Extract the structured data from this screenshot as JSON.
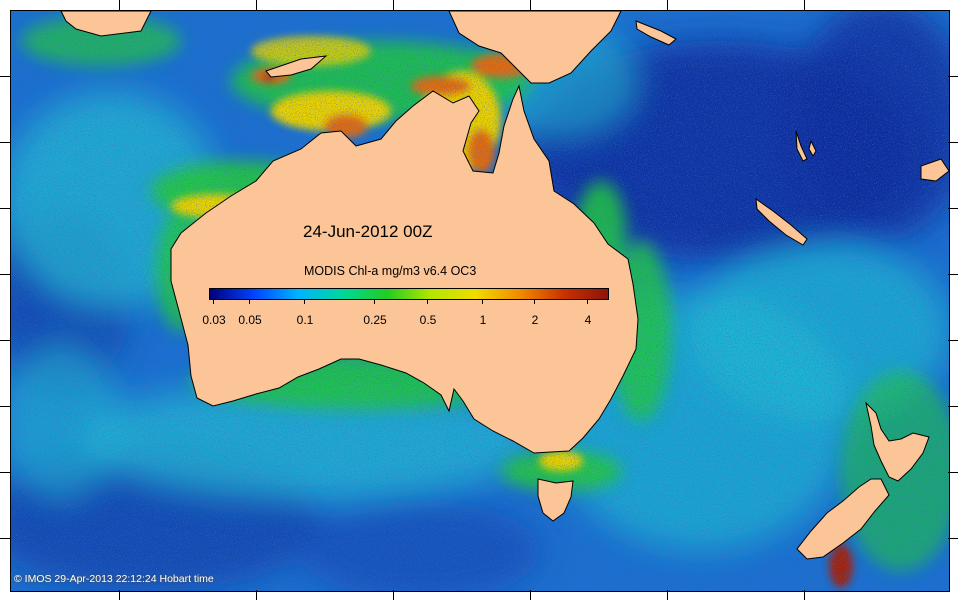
{
  "map": {
    "date_label": "24-Jun-2012 00Z",
    "land_color": "#fbc597",
    "coast_color": "#000000",
    "ocean_colors": {
      "deep": "#0a2a9c",
      "open": "#1a6fd0",
      "mid": "#1fb9d2",
      "shelf": "#22c83c",
      "high": "#e8d000",
      "very_high": "#e06a10",
      "max": "#a0200a"
    }
  },
  "colorbar": {
    "title": "MODIS Chl-a mg/m3 v6.4 OC3",
    "labels": [
      "0.03",
      "0.05",
      "0.1",
      "0.25",
      "0.5",
      "1",
      "2",
      "4"
    ],
    "min": 0.03,
    "max": 5,
    "scale": "log",
    "colors": [
      "#00007a",
      "#0044ff",
      "#00b4ff",
      "#00d89a",
      "#22cc22",
      "#b4e600",
      "#f0dc00",
      "#f08c00",
      "#c83200",
      "#8c140a"
    ]
  },
  "footer": {
    "copyright": "© IMOS 29-Apr-2013 22:12:24 Hobart time"
  }
}
